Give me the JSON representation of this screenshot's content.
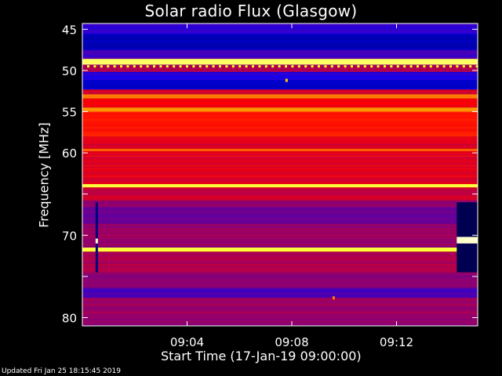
{
  "chart_data": {
    "type": "heatmap",
    "title": "Solar radio Flux (Glasgow)",
    "xlabel": "Start Time (17-Jan-19 09:00:00)",
    "ylabel": "Frequency [MHz]",
    "x_ticks": [
      {
        "minutes": 4,
        "label": "09:04"
      },
      {
        "minutes": 8,
        "label": "09:08"
      },
      {
        "minutes": 12,
        "label": "09:12"
      }
    ],
    "xlim_minutes": [
      0,
      15.1
    ],
    "y_ticks": [
      45,
      50,
      55,
      60,
      65,
      70,
      75,
      80
    ],
    "y_tick_labels": [
      "45",
      "50",
      "55",
      "60",
      "",
      "70",
      "",
      "80"
    ],
    "ylim": [
      44.3,
      81
    ],
    "y_reversed": true,
    "grid": false,
    "colormap": [
      "#000000",
      "#0000ff",
      "#ff0000",
      "#ffff00",
      "#ffffff"
    ],
    "bands": [
      {
        "from": 44.3,
        "to": 45.6,
        "level": 0.3
      },
      {
        "from": 45.6,
        "to": 47.5,
        "level": 0.18
      },
      {
        "from": 47.5,
        "to": 48.6,
        "level": 0.32
      },
      {
        "from": 48.6,
        "to": 49.3,
        "level": 0.85
      },
      {
        "from": 49.3,
        "to": 50.2,
        "level": 0.42
      },
      {
        "from": 50.2,
        "to": 51.2,
        "level": 0.28
      },
      {
        "from": 51.2,
        "to": 52.3,
        "level": 0.2
      },
      {
        "from": 52.3,
        "to": 52.9,
        "level": 0.45
      },
      {
        "from": 52.9,
        "to": 53.4,
        "level": 0.62
      },
      {
        "from": 53.4,
        "to": 54.5,
        "level": 0.5
      },
      {
        "from": 54.5,
        "to": 55.0,
        "level": 0.64
      },
      {
        "from": 55.0,
        "to": 58.0,
        "level": 0.52
      },
      {
        "from": 58.0,
        "to": 59.5,
        "level": 0.47
      },
      {
        "from": 59.5,
        "to": 59.8,
        "level": 0.6
      },
      {
        "from": 59.8,
        "to": 63.8,
        "level": 0.47
      },
      {
        "from": 63.8,
        "to": 64.2,
        "level": 0.8
      },
      {
        "from": 64.2,
        "to": 65.8,
        "level": 0.45
      },
      {
        "from": 65.8,
        "to": 66.6,
        "level": 0.4
      },
      {
        "from": 66.6,
        "to": 68.6,
        "level": 0.36
      },
      {
        "from": 68.6,
        "to": 71.5,
        "level": 0.4
      },
      {
        "from": 71.5,
        "to": 72.0,
        "level": 0.82
      },
      {
        "from": 72.0,
        "to": 74.5,
        "level": 0.42
      },
      {
        "from": 74.5,
        "to": 76.4,
        "level": 0.38
      },
      {
        "from": 76.4,
        "to": 77.6,
        "level": 0.32
      },
      {
        "from": 77.6,
        "to": 81.0,
        "level": 0.4
      }
    ],
    "dashes": [
      {
        "freq": 49.5,
        "level": 0.78
      }
    ],
    "spots": [
      {
        "minutes": 7.8,
        "freq": 51.2,
        "level": 0.7
      },
      {
        "minutes": 9.6,
        "freq": 77.6,
        "level": 0.62
      }
    ],
    "segments": [
      {
        "minutes": 0.55,
        "from": 66.0,
        "to": 74.5,
        "level": 0.12
      },
      {
        "minutes_from": 14.3,
        "minutes_to": 15.1,
        "from": 66.0,
        "to": 74.5,
        "level": 0.08
      },
      {
        "minutes_from": 14.3,
        "minutes_to": 15.1,
        "from": 70.2,
        "to": 71.0,
        "level": 0.95
      }
    ]
  },
  "footer": {
    "updated": "Updated Fri Jan 25 18:15:45 2019"
  }
}
